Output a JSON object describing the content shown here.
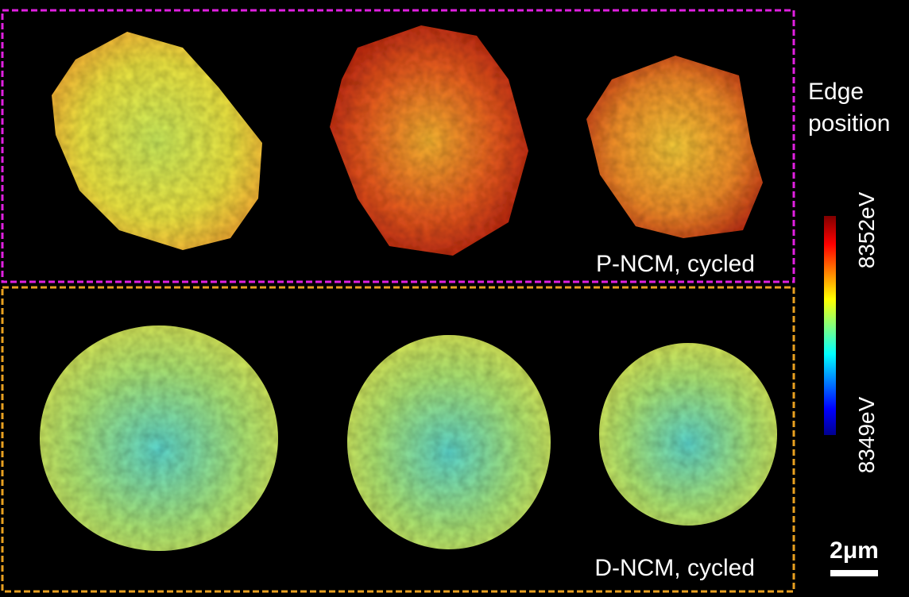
{
  "panels": [
    {
      "label": "P-NCM, cycled"
    },
    {
      "label": "D-NCM, cycled"
    }
  ],
  "colorbar": {
    "title_lines": [
      "Edge",
      "position"
    ],
    "max_label": "8352eV",
    "min_label": "8349eV"
  },
  "scale_bar": {
    "label": "2μm"
  }
}
